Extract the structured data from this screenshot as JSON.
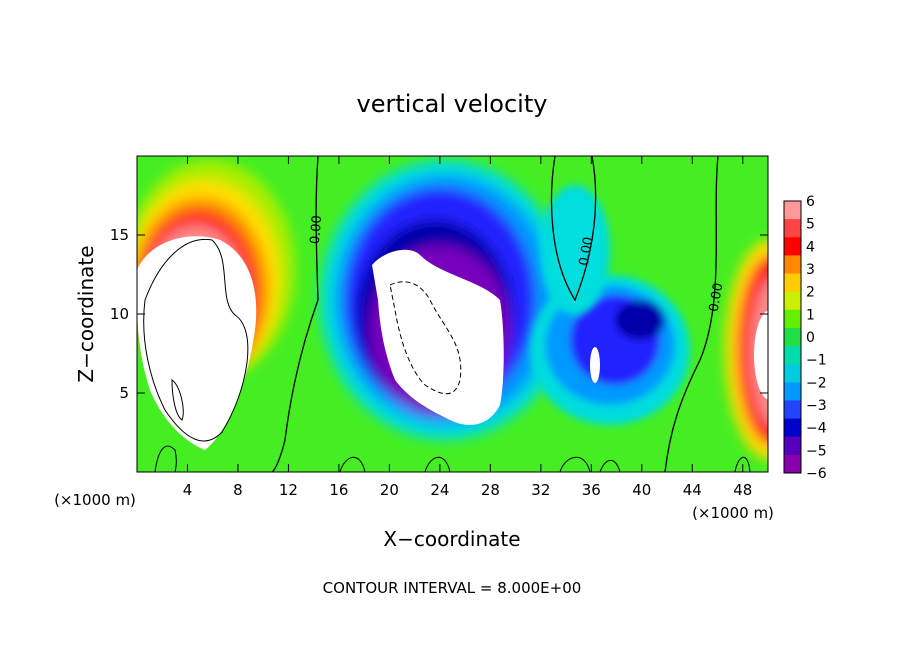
{
  "chart_data": {
    "type": "heatmap",
    "title": "vertical velocity",
    "xlabel": "X−coordinate",
    "ylabel": "Z−coordinate",
    "x_unit": "(×1000 m)",
    "y_unit": "(×1000 m)",
    "xlim": [
      0,
      50
    ],
    "ylim": [
      0,
      20
    ],
    "x_ticks": [
      4,
      8,
      12,
      16,
      20,
      24,
      28,
      32,
      36,
      40,
      44,
      48
    ],
    "y_ticks": [
      5,
      10,
      15
    ],
    "colorbar": {
      "ticks": [
        "6",
        "5",
        "4",
        "3",
        "2",
        "1",
        "0",
        "−1",
        "−2",
        "−3",
        "−4",
        "−5",
        "−6"
      ],
      "range": [
        -6,
        6
      ]
    },
    "contour_labels": [
      "0.00",
      "0.00",
      "0.00"
    ],
    "footer": "CONTOUR INTERVAL = 8.000E+00"
  }
}
